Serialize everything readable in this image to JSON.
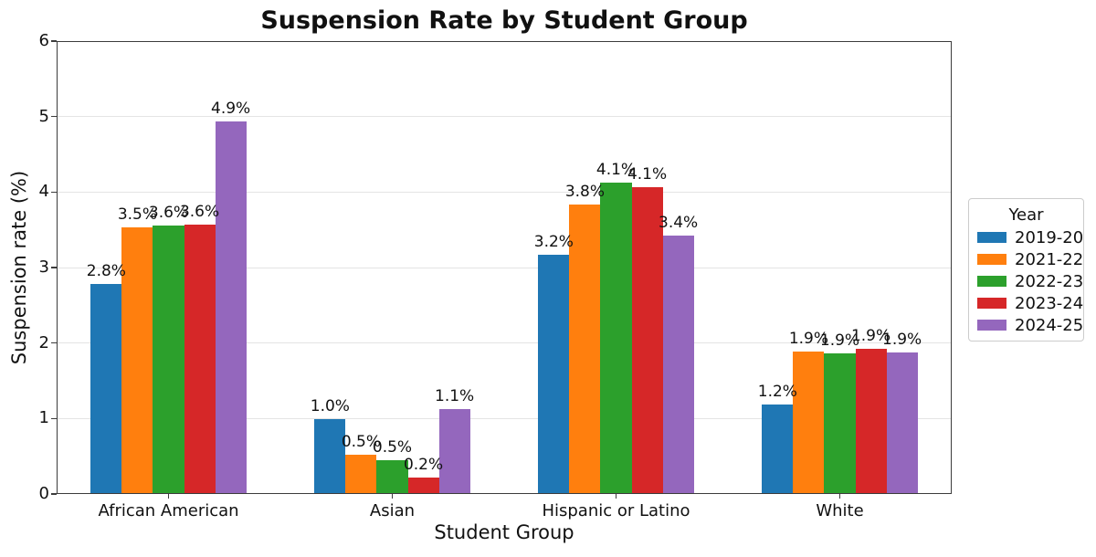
{
  "chart_data": {
    "type": "bar",
    "title": "Suspension Rate by Student Group",
    "xlabel": "Student Group",
    "ylabel": "Suspension rate (%)",
    "ylim": [
      0,
      6
    ],
    "yticks": [
      0,
      1,
      2,
      3,
      4,
      5,
      6
    ],
    "grid": "horizontal",
    "background": "#ffffff",
    "categories": [
      "African American",
      "Asian",
      "Hispanic or Latino",
      "White"
    ],
    "legend": {
      "title": "Year",
      "position": "center-right"
    },
    "series": [
      {
        "name": "2019-20",
        "color": "#1f77b4",
        "values": [
          2.78,
          0.99,
          3.17,
          1.19
        ],
        "bar_labels": [
          "2.8%",
          "1.0%",
          "3.2%",
          "1.2%"
        ]
      },
      {
        "name": "2021-22",
        "color": "#ff7f0e",
        "values": [
          3.53,
          0.52,
          3.83,
          1.89
        ],
        "bar_labels": [
          "3.5%",
          "0.5%",
          "3.8%",
          "1.9%"
        ]
      },
      {
        "name": "2022-23",
        "color": "#2ca02c",
        "values": [
          3.56,
          0.45,
          4.13,
          1.86
        ],
        "bar_labels": [
          "3.6%",
          "0.5%",
          "4.1%",
          "1.9%"
        ]
      },
      {
        "name": "2023-24",
        "color": "#d62728",
        "values": [
          3.57,
          0.22,
          4.07,
          1.92
        ],
        "bar_labels": [
          "3.6%",
          "0.2%",
          "4.1%",
          "1.9%"
        ]
      },
      {
        "name": "2024-25",
        "color": "#9467bd",
        "values": [
          4.93,
          1.13,
          3.42,
          1.87
        ],
        "bar_labels": [
          "4.9%",
          "1.1%",
          "3.4%",
          "1.9%"
        ]
      }
    ]
  }
}
